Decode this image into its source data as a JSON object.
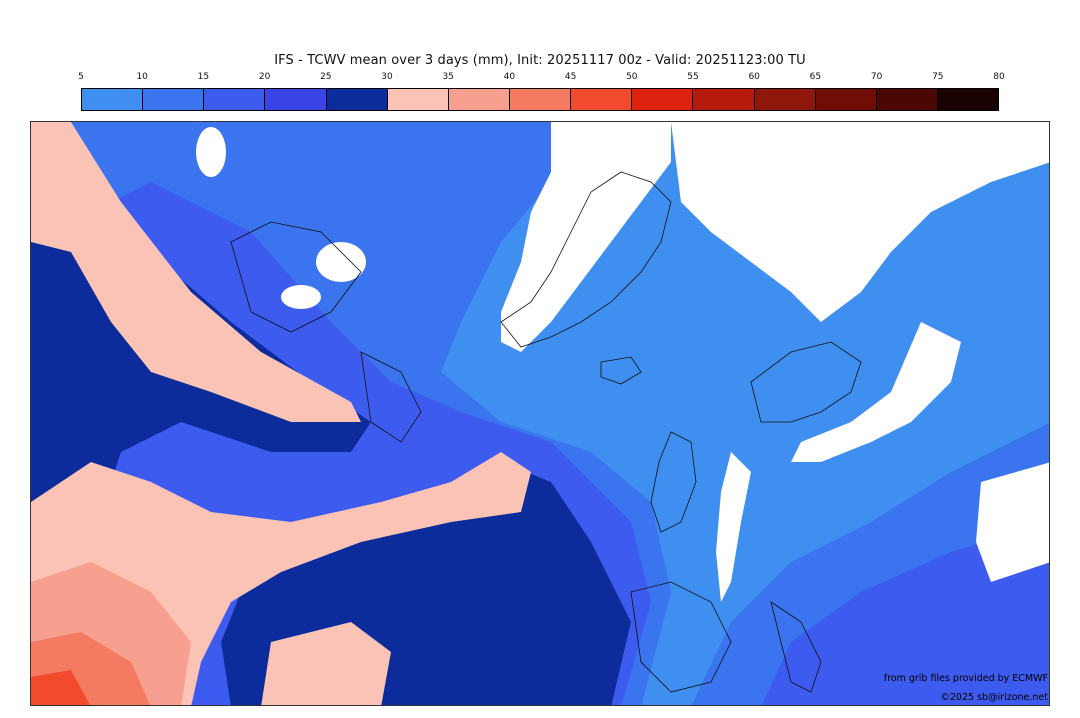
{
  "title": "IFS - TCWV mean over 3 days (mm), Init: 20251117 00z - Valid: 20251123:00 TU",
  "colorbar": {
    "ticks": [
      "5",
      "10",
      "15",
      "20",
      "25",
      "30",
      "35",
      "40",
      "45",
      "50",
      "55",
      "60",
      "65",
      "70",
      "75",
      "80"
    ],
    "colors": [
      "#3f8ff0",
      "#3a74ee",
      "#3d5bef",
      "#3b44e6",
      "#0d2c9c",
      "#fbc3b5",
      "#f8a090",
      "#f57a62",
      "#f24a2c",
      "#de2210",
      "#b51a0c",
      "#8e160b",
      "#6e0e07",
      "#4b0704",
      "#1a0202"
    ]
  },
  "credits": {
    "line1": "from grib files provided by ECMWF",
    "line2": "©2025 sb@irizone.net"
  }
}
